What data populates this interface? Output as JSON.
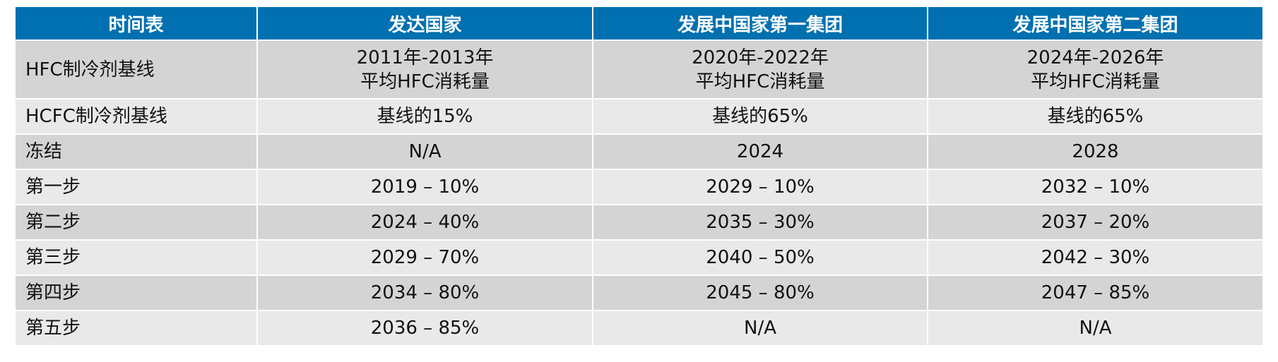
{
  "headers": [
    "时间表",
    "发达国家",
    "发展中国家第一集团",
    "发展中国家第二集团"
  ],
  "rows": [
    {
      "label": "HFC制冷剂基线",
      "cells": [
        [
          "2011年-2013年",
          "平均HFC消耗量"
        ],
        [
          "2020年-2022年",
          "平均HFC消耗量"
        ],
        [
          "2024年-2026年",
          "平均HFC消耗量"
        ]
      ]
    },
    {
      "label": "HCFC制冷剂基线",
      "cells": [
        [
          "基线的15%"
        ],
        [
          "基线的65%"
        ],
        [
          "基线的65%"
        ]
      ]
    },
    {
      "label": "冻结",
      "cells": [
        [
          "N/A"
        ],
        [
          "2024"
        ],
        [
          "2028"
        ]
      ]
    },
    {
      "label": "第一步",
      "cells": [
        [
          "2019 – 10%"
        ],
        [
          "2029 – 10%"
        ],
        [
          "2032 – 10%"
        ]
      ]
    },
    {
      "label": "第二步",
      "cells": [
        [
          "2024 – 40%"
        ],
        [
          "2035 – 30%"
        ],
        [
          "2037 – 20%"
        ]
      ]
    },
    {
      "label": "第三步",
      "cells": [
        [
          "2029 – 70%"
        ],
        [
          "2040 – 50%"
        ],
        [
          "2042 – 30%"
        ]
      ]
    },
    {
      "label": "第四步",
      "cells": [
        [
          "2034 – 80%"
        ],
        [
          "2045 – 80%"
        ],
        [
          "2047 – 85%"
        ]
      ]
    },
    {
      "label": "第五步",
      "cells": [
        [
          "2036 – 85%"
        ],
        [
          "N/A"
        ],
        [
          "N/A"
        ]
      ]
    }
  ],
  "colors": {
    "header_bg": "#0070b0",
    "row_dark": "#d4d4d4",
    "row_light": "#e9e9e9"
  }
}
